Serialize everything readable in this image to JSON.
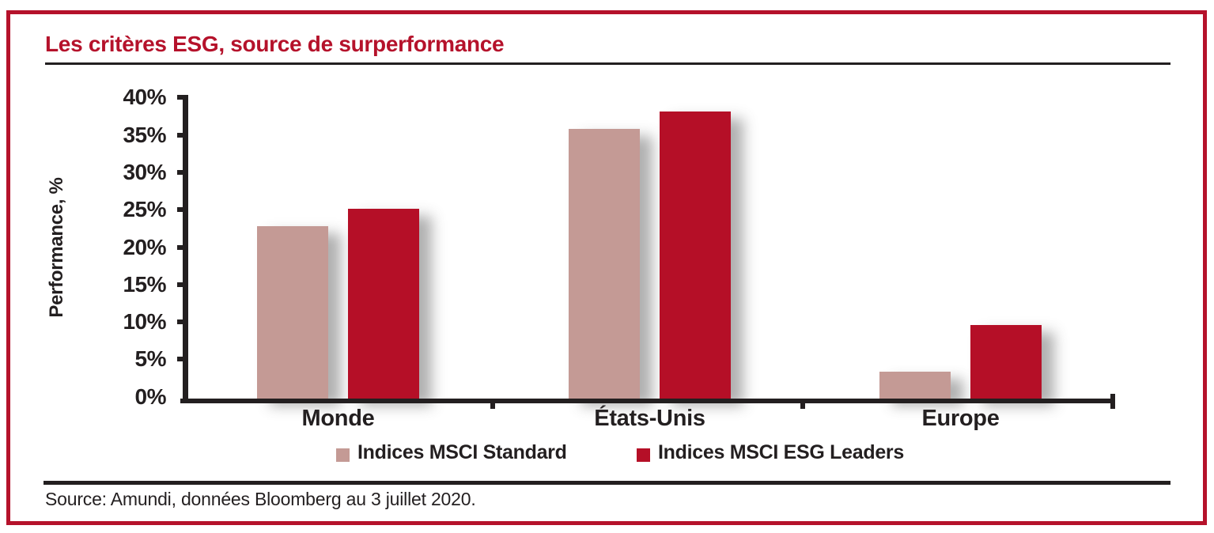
{
  "window": {
    "frame_border_color": "#b5122b",
    "background_color": "#ffffff"
  },
  "header": {
    "title": "Les critères ESG, source de surperformance",
    "title_color": "#b5122b"
  },
  "footer": {
    "source_text": "Source: Amundi, données Bloomberg au 3 juillet 2020."
  },
  "chart_data": {
    "type": "bar",
    "title": "Les critères ESG, source de surperformance",
    "categories": [
      "Monde",
      "États-Unis",
      "Europe"
    ],
    "series": [
      {
        "name": "Indices MSCI Standard",
        "color": "#c49a95",
        "values": [
          23.0,
          36.0,
          3.6
        ]
      },
      {
        "name": "Indices MSCI ESG Leaders",
        "color": "#b50f27",
        "values": [
          25.4,
          38.4,
          9.8
        ]
      }
    ],
    "ylabel": "Performance, %",
    "ylim": [
      0,
      40
    ],
    "ytick_step": 5,
    "ytick_labels": [
      "0%",
      "5%",
      "10%",
      "15%",
      "20%",
      "25%",
      "30%",
      "35%",
      "40%"
    ],
    "legend_position": "bottom",
    "grid": false,
    "axis_color": "#231f20",
    "text_color": "#231f20"
  }
}
